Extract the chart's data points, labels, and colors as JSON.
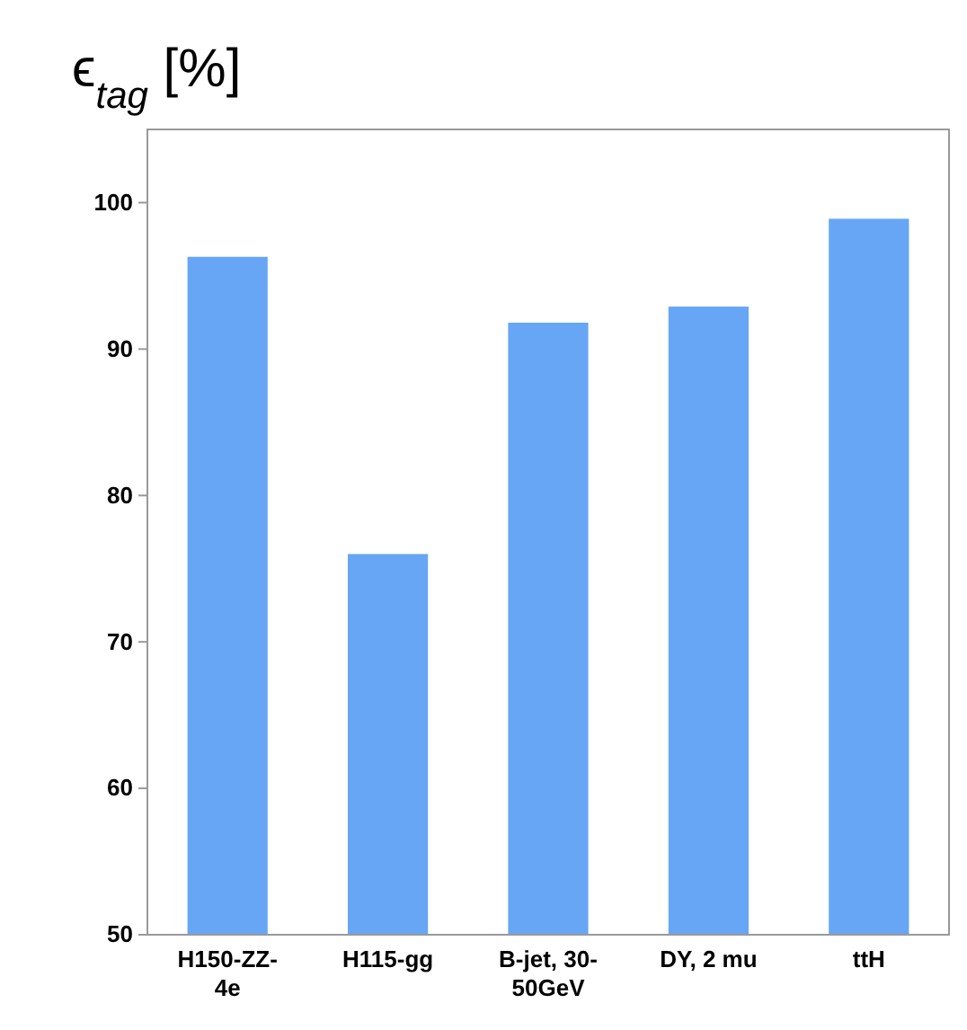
{
  "chart_data": {
    "type": "bar",
    "title": "ϵ$_{tag}$ [%]",
    "categories": [
      "H150-ZZ-4e",
      "H115-gg",
      "B-jet, 30-50GeV",
      "DY, 2 mu",
      "ttH"
    ],
    "values": [
      96.3,
      76,
      91.8,
      92.9,
      98.9
    ],
    "color": "#66a6f5",
    "ylim": [
      50,
      105
    ],
    "yticks": [
      50,
      60,
      70,
      80,
      90,
      100
    ],
    "grid": false
  }
}
